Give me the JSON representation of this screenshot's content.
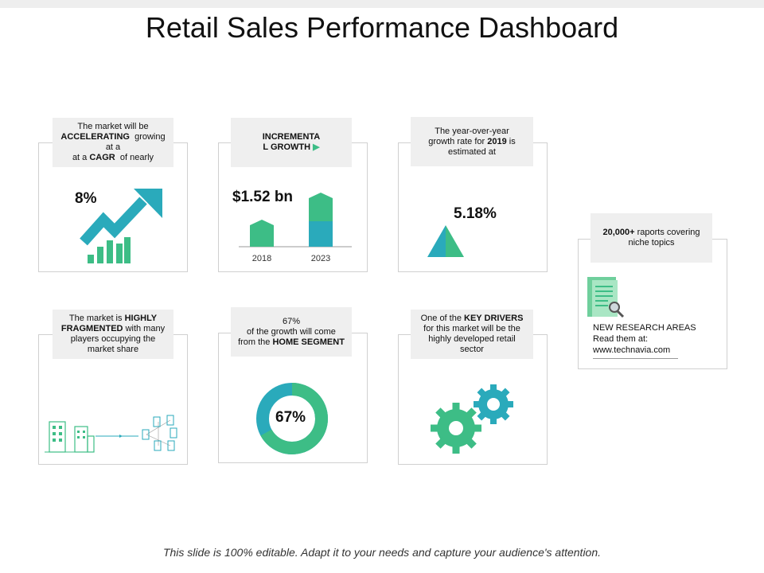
{
  "title": "Retail Sales Performance Dashboard",
  "footer": "This slide is 100% editable. Adapt it to your needs and capture your audience's attention.",
  "colors": {
    "green": "#3dbd86",
    "teal": "#2aaabb",
    "card_border": "#d0d0d0",
    "caption_bg": "#efefef"
  },
  "cards": {
    "cagr": {
      "caption_pre": "The market will be",
      "caption_b1": "ACCELERATING",
      "caption_mid": "growing at a",
      "caption_b2": "CAGR",
      "caption_post": "of nearly",
      "value": "8%",
      "icon": "growth-arrow-icon"
    },
    "growth": {
      "caption_l1": "INCREMENTA",
      "caption_l2": "L GROWTH",
      "value": "$1.52 bn",
      "bars": [
        {
          "year": "2018",
          "value": 1
        },
        {
          "year": "2023",
          "value": 2
        }
      ]
    },
    "yoy": {
      "caption_l1": "The year-over-year",
      "caption_pre": "growth rate for",
      "caption_b": "2019",
      "caption_post": "is",
      "caption_l3": "estimated at",
      "value": "5.18%",
      "icon": "triangle-icon"
    },
    "fragmented": {
      "caption_pre": "The market is",
      "caption_b": "HIGHLY FRAGMENTED",
      "caption_post": "with many players occupying the market share",
      "icon": "buildings-network-icon"
    },
    "segment": {
      "caption_l1": "67%",
      "caption_l2": "of the growth will come",
      "caption_pre": "from the",
      "caption_b": "HOME SEGMENT",
      "value": "67%",
      "percent": 67
    },
    "drivers": {
      "caption_pre": "One of the",
      "caption_b": "KEY DRIVERS",
      "caption_post": "for this market will be the highly developed retail sector",
      "icon": "gears-icon"
    },
    "research": {
      "caption_b": "20,000+",
      "caption_post": "raports covering niche topics",
      "line1": "NEW RESEARCH AREAS",
      "line2": "Read them at:",
      "line3": "www.technavia.com",
      "icon": "research-document-icon"
    }
  }
}
